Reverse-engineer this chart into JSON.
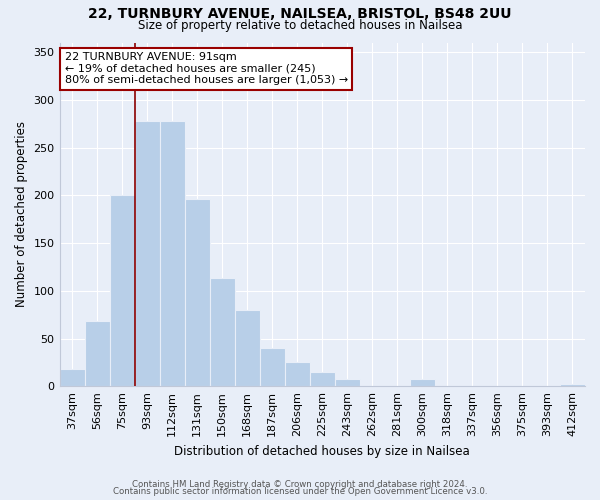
{
  "title_line1": "22, TURNBURY AVENUE, NAILSEA, BRISTOL, BS48 2UU",
  "title_line2": "Size of property relative to detached houses in Nailsea",
  "xlabel": "Distribution of detached houses by size in Nailsea",
  "ylabel": "Number of detached properties",
  "categories": [
    "37sqm",
    "56sqm",
    "75sqm",
    "93sqm",
    "112sqm",
    "131sqm",
    "150sqm",
    "168sqm",
    "187sqm",
    "206sqm",
    "225sqm",
    "243sqm",
    "262sqm",
    "281sqm",
    "300sqm",
    "318sqm",
    "337sqm",
    "356sqm",
    "375sqm",
    "393sqm",
    "412sqm"
  ],
  "values": [
    18,
    68,
    200,
    278,
    278,
    196,
    113,
    80,
    40,
    25,
    15,
    8,
    0,
    0,
    8,
    0,
    0,
    0,
    0,
    0,
    2
  ],
  "bar_color": "#b8cfe8",
  "vline_color": "#8b0000",
  "vline_x_index": 3,
  "annotation_title": "22 TURNBURY AVENUE: 91sqm",
  "annotation_line2": "← 19% of detached houses are smaller (245)",
  "annotation_line3": "80% of semi-detached houses are larger (1,053) →",
  "ylim": [
    0,
    360
  ],
  "yticks": [
    0,
    50,
    100,
    150,
    200,
    250,
    300,
    350
  ],
  "footer_line1": "Contains HM Land Registry data © Crown copyright and database right 2024.",
  "footer_line2": "Contains public sector information licensed under the Open Government Licence v3.0.",
  "background_color": "#e8eef8",
  "grid_color": "#ffffff",
  "spine_color": "#c0c8d8"
}
